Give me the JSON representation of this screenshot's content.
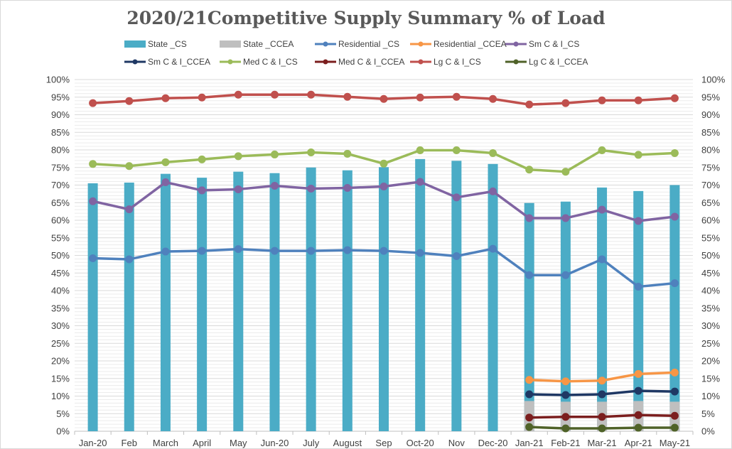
{
  "chart_data": {
    "type": "bar",
    "title": "2020/21Competitive Supply Summary % of Load",
    "categories": [
      "Jan-20",
      "Feb",
      "March",
      "April",
      "May",
      "Jun-20",
      "July",
      "August",
      "Sep",
      "Oct-20",
      "Nov",
      "Dec-20",
      "Jan-21",
      "Feb-21",
      "Mar-21",
      "Apr-21",
      "May-21"
    ],
    "y_ticks": [
      "0%",
      "5%",
      "10%",
      "15%",
      "20%",
      "25%",
      "30%",
      "35%",
      "40%",
      "45%",
      "50%",
      "55%",
      "60%",
      "65%",
      "70%",
      "75%",
      "80%",
      "85%",
      "90%",
      "95%",
      "100%"
    ],
    "ylim": [
      0,
      100
    ],
    "y_unit": "%",
    "grid": true,
    "legend_position": "top",
    "bar_series": [
      {
        "name": "State _CS",
        "color": "#4bacc6",
        "values": [
          70.5,
          70.7,
          73.2,
          72.1,
          73.8,
          73.4,
          75.0,
          74.2,
          75.1,
          77.4,
          76.9,
          76.0,
          64.9,
          65.3,
          69.3,
          68.3,
          70.0
        ]
      },
      {
        "name": "State _CCEA",
        "color": "#bfbfbf",
        "values": [
          null,
          null,
          null,
          null,
          null,
          null,
          null,
          null,
          null,
          null,
          null,
          null,
          8.6,
          8.4,
          8.4,
          8.6,
          8.4
        ]
      }
    ],
    "line_series": [
      {
        "name": "Residential _CS",
        "color": "#4f81bd",
        "values": [
          49.2,
          48.9,
          51.1,
          51.3,
          51.8,
          51.3,
          51.3,
          51.5,
          51.3,
          50.7,
          49.8,
          51.9,
          44.4,
          44.4,
          48.9,
          41.1,
          42.1
        ]
      },
      {
        "name": "Residential _CCEA",
        "color": "#f79646",
        "values": [
          null,
          null,
          null,
          null,
          null,
          null,
          null,
          null,
          null,
          null,
          null,
          null,
          14.6,
          14.2,
          14.4,
          16.3,
          16.7
        ]
      },
      {
        "name": "Sm C & I_CS",
        "color": "#8064a2",
        "values": [
          65.4,
          63.1,
          70.8,
          68.5,
          68.8,
          69.8,
          69.0,
          69.2,
          69.6,
          70.9,
          66.5,
          68.2,
          60.6,
          60.6,
          63.0,
          59.8,
          61.0
        ]
      },
      {
        "name": "Sm C & I_CCEA",
        "color": "#1f3864",
        "values": [
          null,
          null,
          null,
          null,
          null,
          null,
          null,
          null,
          null,
          null,
          null,
          null,
          10.5,
          10.3,
          10.5,
          11.5,
          11.3
        ]
      },
      {
        "name": "Med C & I_CS",
        "color": "#9bbb59",
        "values": [
          76.0,
          75.4,
          76.5,
          77.3,
          78.2,
          78.7,
          79.3,
          78.9,
          76.1,
          79.9,
          79.9,
          79.1,
          74.4,
          73.8,
          79.9,
          78.6,
          79.1
        ]
      },
      {
        "name": "Med C & I_CCEA",
        "color": "#7b1e1e",
        "values": [
          null,
          null,
          null,
          null,
          null,
          null,
          null,
          null,
          null,
          null,
          null,
          null,
          3.9,
          4.1,
          4.1,
          4.6,
          4.4
        ]
      },
      {
        "name": "Lg C & I_CS",
        "color": "#c0504d",
        "values": [
          93.3,
          93.9,
          94.7,
          94.9,
          95.7,
          95.7,
          95.7,
          95.1,
          94.5,
          94.9,
          95.1,
          94.5,
          92.9,
          93.3,
          94.1,
          94.1,
          94.7
        ]
      },
      {
        "name": "Lg C & I_CCEA",
        "color": "#4f6228",
        "values": [
          null,
          null,
          null,
          null,
          null,
          null,
          null,
          null,
          null,
          null,
          null,
          null,
          1.2,
          0.8,
          0.8,
          1.0,
          1.0
        ]
      }
    ],
    "legend_rows": [
      [
        "State _CS",
        "State _CCEA",
        "Residential _CS",
        "Residential _CCEA",
        "Sm C & I_CS"
      ],
      [
        "Sm C & I_CCEA",
        "Med C & I_CS",
        "Med C & I_CCEA",
        "Lg C & I_CS",
        "Lg C & I_CCEA"
      ]
    ]
  }
}
